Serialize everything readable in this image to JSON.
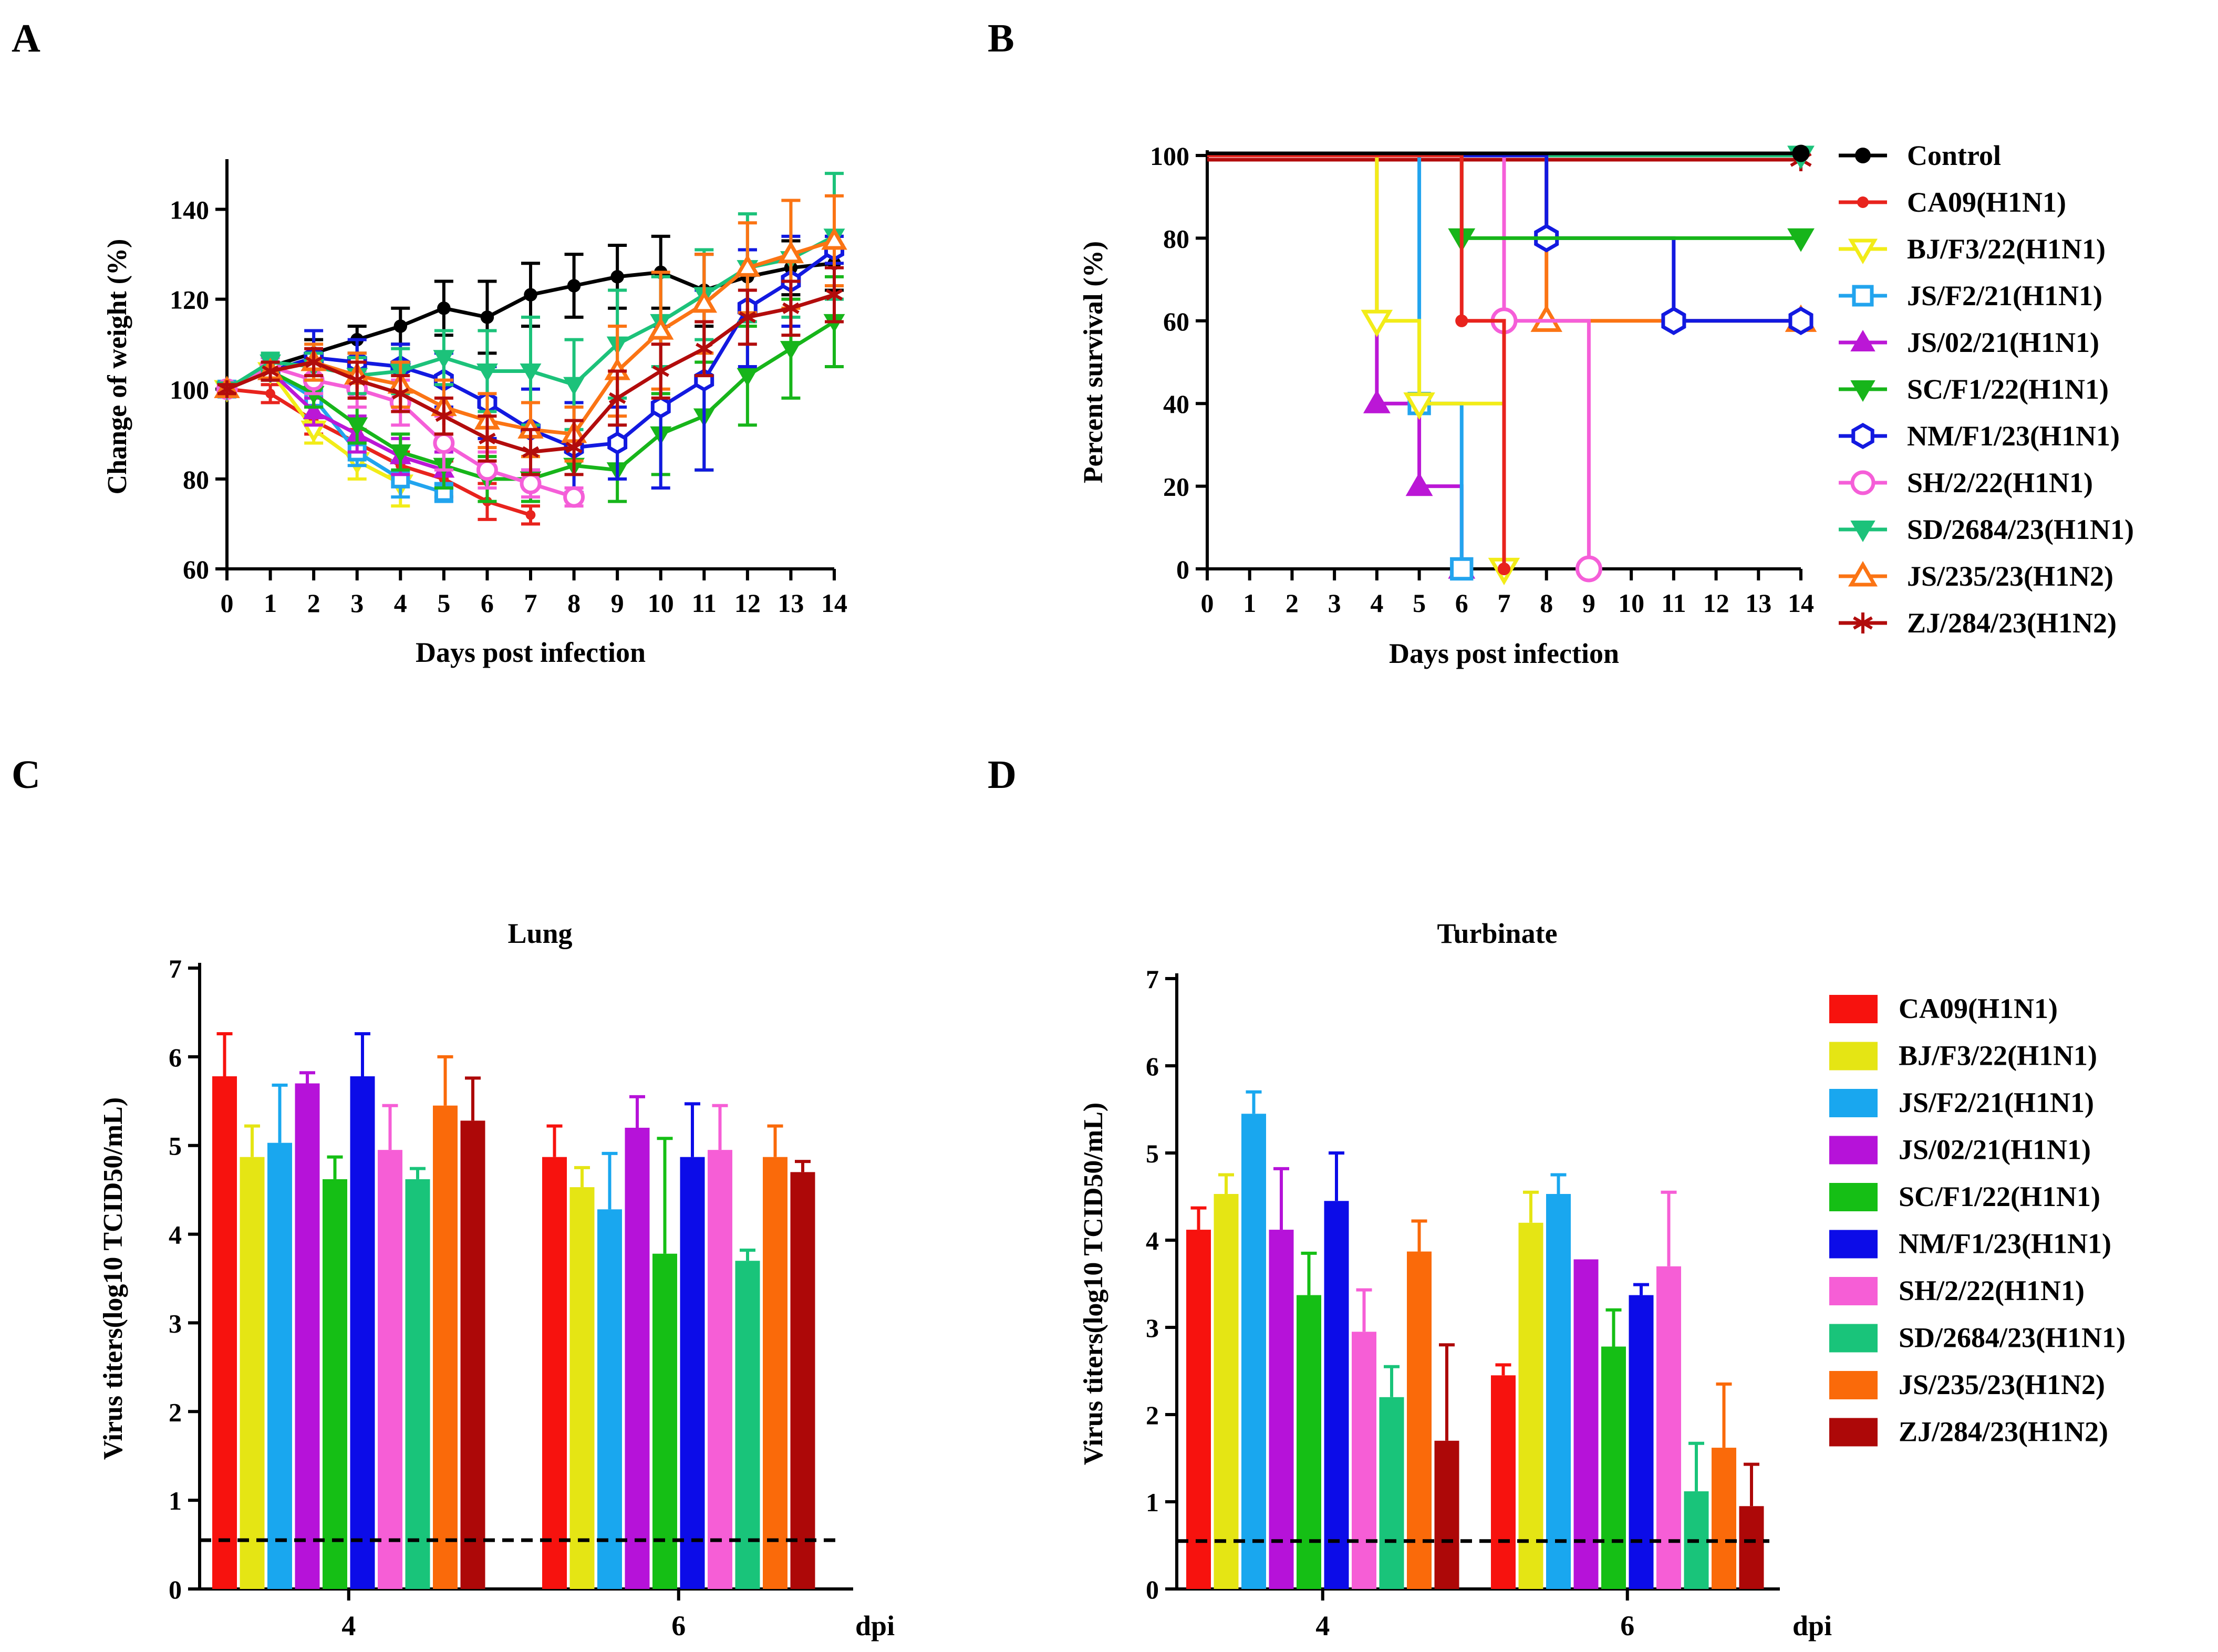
{
  "figure": {
    "panel_labels": [
      "A",
      "B",
      "C",
      "D"
    ],
    "series_names": [
      "Control",
      "CA09(H1N1)",
      "BJ/F3/22(H1N1)",
      "JS/F2/21(H1N1)",
      "JS/02/21(H1N1)",
      "SC/F1/22(H1N1)",
      "NM/F1/23(H1N1)",
      "SH/2/22(H1N1)",
      "SD/2684/23(H1N1)",
      "JS/235/23(H1N2)",
      "ZJ/284/23(H1N2)"
    ],
    "colors": {
      "Control": "#000000",
      "CA09(H1N1)": "#e8231d",
      "BJ/F3/22(H1N1)": "#f2ec18",
      "JS/F2/21(H1N1)": "#22a4ee",
      "JS/02/21(H1N1)": "#bb17d6",
      "SC/F1/22(H1N1)": "#17b51a",
      "NM/F1/23(H1N1)": "#1219e0",
      "SH/2/22(H1N1)": "#f55ed8",
      "SD/2684/23(H1N1)": "#1cc27a",
      "JS/235/23(H1N2)": "#fb7414",
      "ZJ/284/23(H1N2)": "#b20c0c"
    },
    "bar_colors": {
      "CA09(H1N1)": "#f7120e",
      "BJ/F3/22(H1N1)": "#e5e514",
      "JS/F2/21(H1N1)": "#19a7ef",
      "JS/02/21(H1N1)": "#b612d9",
      "SC/F1/22(H1N1)": "#15bf15",
      "NM/F1/23(H1N1)": "#0c0ce8",
      "SH/2/22(H1N1)": "#f65ed6",
      "SD/2684/23(H1N1)": "#19c47a",
      "JS/235/23(H1N2)": "#fa6a0a",
      "ZJ/284/23(H1N2)": "#ad0808"
    },
    "markers": {
      "Control": "circle-filled",
      "CA09(H1N1)": "small-circle-filled",
      "BJ/F3/22(H1N1)": "triangle-down-open",
      "JS/F2/21(H1N1)": "square-open",
      "JS/02/21(H1N1)": "triangle-up-filled",
      "SC/F1/22(H1N1)": "triangle-down-filled",
      "NM/F1/23(H1N1)": "hexagon-open",
      "SH/2/22(H1N1)": "circle-open",
      "SD/2684/23(H1N1)": "triangle-down-filled",
      "JS/235/23(H1N2)": "triangle-up-open",
      "ZJ/284/23(H1N2)": "asterisk"
    }
  },
  "chart_data": [
    {
      "id": "A",
      "type": "line",
      "title": "",
      "xlabel": "Days post infection",
      "ylabel": "Change of weight (%)",
      "xlim": [
        0,
        14
      ],
      "ylim": [
        60,
        150
      ],
      "xticks": [
        0,
        1,
        2,
        3,
        4,
        5,
        6,
        7,
        8,
        9,
        10,
        11,
        12,
        13,
        14
      ],
      "yticks": [
        60,
        80,
        100,
        120,
        140
      ],
      "series": [
        {
          "name": "Control",
          "x": [
            0,
            1,
            2,
            3,
            4,
            5,
            6,
            7,
            8,
            9,
            10,
            11,
            12,
            13,
            14
          ],
          "y": [
            100,
            105,
            108,
            111,
            114,
            118,
            116,
            121,
            123,
            125,
            126,
            122,
            125,
            127,
            128
          ],
          "err": [
            1,
            2,
            3,
            3,
            4,
            6,
            8,
            7,
            7,
            7,
            8,
            8,
            6,
            6,
            6
          ]
        },
        {
          "name": "CA09(H1N1)",
          "x": [
            0,
            1,
            2,
            3,
            4,
            5,
            6,
            7
          ],
          "y": [
            100,
            99,
            93,
            88,
            83,
            80,
            75,
            72
          ],
          "err": [
            1,
            2,
            3,
            3,
            3,
            4,
            4,
            2
          ]
        },
        {
          "name": "BJ/F3/22(H1N1)",
          "x": [
            0,
            1,
            2,
            3,
            4
          ],
          "y": [
            100,
            104,
            91,
            84,
            79
          ],
          "err": [
            1,
            2,
            3,
            4,
            5
          ]
        },
        {
          "name": "JS/F2/21(H1N1)",
          "x": [
            0,
            1,
            2,
            3,
            4,
            5
          ],
          "y": [
            100,
            104,
            98,
            86,
            80,
            77
          ],
          "err": [
            1,
            2,
            4,
            3,
            4,
            2
          ]
        },
        {
          "name": "JS/02/21(H1N1)",
          "x": [
            0,
            1,
            2,
            3,
            4,
            5
          ],
          "y": [
            100,
            104,
            95,
            90,
            85,
            82
          ],
          "err": [
            1,
            2,
            3,
            4,
            4,
            4
          ]
        },
        {
          "name": "SC/F1/22(H1N1)",
          "x": [
            0,
            1,
            2,
            3,
            4,
            5,
            6,
            7,
            8,
            9,
            10,
            11,
            12,
            13,
            14
          ],
          "y": [
            100,
            104,
            99,
            92,
            86,
            83,
            80,
            80,
            83,
            82,
            90,
            94,
            103,
            109,
            115
          ],
          "err": [
            1,
            2,
            3,
            4,
            4,
            5,
            5,
            5,
            6,
            7,
            9,
            12,
            11,
            11,
            10
          ]
        },
        {
          "name": "NM/F1/23(H1N1)",
          "x": [
            0,
            1,
            2,
            3,
            4,
            5,
            6,
            7,
            8,
            9,
            10,
            11,
            12,
            13,
            14
          ],
          "y": [
            100,
            104,
            107,
            106,
            105,
            102,
            97,
            91,
            87,
            88,
            96,
            102,
            118,
            124,
            131
          ],
          "err": [
            1,
            2,
            6,
            5,
            5,
            6,
            8,
            9,
            10,
            8,
            18,
            20,
            13,
            10,
            3
          ]
        },
        {
          "name": "SH/2/22(H1N1)",
          "x": [
            0,
            1,
            2,
            3,
            4,
            5,
            6,
            7,
            8
          ],
          "y": [
            100,
            105,
            102,
            100,
            97,
            88,
            82,
            79,
            76
          ],
          "err": [
            1,
            2,
            3,
            4,
            5,
            6,
            4,
            3,
            2
          ]
        },
        {
          "name": "SD/2684/23(H1N1)",
          "x": [
            0,
            1,
            2,
            3,
            4,
            5,
            6,
            7,
            8,
            9,
            10,
            11,
            12,
            13,
            14
          ],
          "y": [
            100,
            106,
            105,
            103,
            104,
            107,
            104,
            104,
            101,
            110,
            115,
            121,
            127,
            129,
            134
          ],
          "err": [
            1,
            2,
            3,
            4,
            5,
            6,
            9,
            12,
            10,
            12,
            10,
            10,
            12,
            13,
            14
          ]
        },
        {
          "name": "JS/235/23(H1N2)",
          "x": [
            0,
            1,
            2,
            3,
            4,
            5,
            6,
            7,
            8,
            9,
            10,
            11,
            12,
            13,
            14
          ],
          "y": [
            100,
            104,
            106,
            103,
            101,
            96,
            93,
            91,
            90,
            104,
            113,
            119,
            127,
            130,
            133
          ],
          "err": [
            1,
            2,
            4,
            5,
            5,
            6,
            6,
            6,
            6,
            10,
            13,
            11,
            10,
            12,
            10
          ]
        },
        {
          "name": "ZJ/284/23(H1N2)",
          "x": [
            0,
            1,
            2,
            3,
            4,
            5,
            6,
            7,
            8,
            9,
            10,
            11,
            12,
            13,
            14
          ],
          "y": [
            100,
            104,
            106,
            102,
            99,
            94,
            89,
            86,
            87,
            98,
            104,
            109,
            116,
            118,
            121
          ],
          "err": [
            1,
            2,
            3,
            4,
            4,
            4,
            5,
            5,
            6,
            6,
            6,
            6,
            6,
            6,
            6
          ]
        }
      ]
    },
    {
      "id": "B",
      "type": "line",
      "subtype": "survival-step",
      "title": "",
      "xlabel": "Days post infection",
      "ylabel": "Percent survival (%)",
      "xlim": [
        0,
        14
      ],
      "ylim": [
        0,
        100
      ],
      "xticks": [
        0,
        1,
        2,
        3,
        4,
        5,
        6,
        7,
        8,
        9,
        10,
        11,
        12,
        13,
        14
      ],
      "yticks": [
        0,
        20,
        40,
        60,
        80,
        100
      ],
      "legend": "right",
      "series": [
        {
          "name": "Control",
          "x": [
            0,
            14
          ],
          "y": [
            100,
            100
          ]
        },
        {
          "name": "CA09(H1N1)",
          "x": [
            0,
            6,
            6,
            7,
            7
          ],
          "y": [
            100,
            100,
            60,
            60,
            0
          ]
        },
        {
          "name": "BJ/F3/22(H1N1)",
          "x": [
            0,
            4,
            4,
            5,
            5,
            7,
            7
          ],
          "y": [
            100,
            100,
            60,
            60,
            40,
            40,
            0
          ]
        },
        {
          "name": "JS/F2/21(H1N1)",
          "x": [
            0,
            5,
            5,
            6,
            6
          ],
          "y": [
            100,
            100,
            40,
            40,
            0
          ]
        },
        {
          "name": "JS/02/21(H1N1)",
          "x": [
            0,
            4,
            4,
            5,
            5,
            6,
            6
          ],
          "y": [
            100,
            100,
            40,
            40,
            20,
            20,
            0
          ]
        },
        {
          "name": "SC/F1/22(H1N1)",
          "x": [
            0,
            6,
            6,
            14
          ],
          "y": [
            100,
            100,
            80,
            80
          ]
        },
        {
          "name": "NM/F1/23(H1N1)",
          "x": [
            0,
            8,
            8,
            11,
            11,
            14
          ],
          "y": [
            100,
            100,
            80,
            80,
            60,
            60
          ]
        },
        {
          "name": "SH/2/22(H1N1)",
          "x": [
            0,
            7,
            7,
            9,
            9
          ],
          "y": [
            100,
            100,
            60,
            60,
            0
          ]
        },
        {
          "name": "SD/2684/23(H1N1)",
          "x": [
            0,
            14
          ],
          "y": [
            100,
            100
          ]
        },
        {
          "name": "JS/235/23(H1N2)",
          "x": [
            0,
            8,
            8,
            14
          ],
          "y": [
            100,
            100,
            60,
            60
          ]
        },
        {
          "name": "ZJ/284/23(H1N2)",
          "x": [
            0,
            14
          ],
          "y": [
            100,
            100
          ]
        }
      ]
    },
    {
      "id": "C",
      "type": "bar",
      "title": "Lung",
      "xlabel": "dpi",
      "ylabel": "Virus titers(log10 TCID50/mL)",
      "ylim": [
        0,
        7
      ],
      "yticks": [
        0,
        1,
        2,
        3,
        4,
        5,
        6,
        7
      ],
      "categories": [
        "4",
        "6"
      ],
      "detection_limit": 0.55,
      "series": [
        {
          "name": "CA09(H1N1)",
          "values": [
            5.78,
            4.87
          ],
          "err": [
            0.48,
            0.35
          ]
        },
        {
          "name": "BJ/F3/22(H1N1)",
          "values": [
            4.87,
            4.53
          ],
          "err": [
            0.35,
            0.22
          ]
        },
        {
          "name": "JS/F2/21(H1N1)",
          "values": [
            5.03,
            4.28
          ],
          "err": [
            0.65,
            0.63
          ]
        },
        {
          "name": "JS/02/21(H1N1)",
          "values": [
            5.7,
            5.2
          ],
          "err": [
            0.12,
            0.35
          ]
        },
        {
          "name": "SC/F1/22(H1N1)",
          "values": [
            4.62,
            3.78
          ],
          "err": [
            0.25,
            1.3
          ]
        },
        {
          "name": "NM/F1/23(H1N1)",
          "values": [
            5.78,
            4.87
          ],
          "err": [
            0.48,
            0.6
          ]
        },
        {
          "name": "SH/2/22(H1N1)",
          "values": [
            4.95,
            4.95
          ],
          "err": [
            0.5,
            0.5
          ]
        },
        {
          "name": "SD/2684/23(H1N1)",
          "values": [
            4.62,
            3.7
          ],
          "err": [
            0.12,
            0.12
          ]
        },
        {
          "name": "JS/235/23(H1N2)",
          "values": [
            5.45,
            4.87
          ],
          "err": [
            0.55,
            0.35
          ]
        },
        {
          "name": "ZJ/284/23(H1N2)",
          "values": [
            5.28,
            4.7
          ],
          "err": [
            0.48,
            0.12
          ]
        }
      ]
    },
    {
      "id": "D",
      "type": "bar",
      "title": "Turbinate",
      "xlabel": "dpi",
      "ylabel": "Virus titers(log10 TCID50/mL)",
      "ylim": [
        0,
        7
      ],
      "yticks": [
        0,
        1,
        2,
        3,
        4,
        5,
        6,
        7
      ],
      "categories": [
        "4",
        "6"
      ],
      "detection_limit": 0.55,
      "legend": "right",
      "series": [
        {
          "name": "CA09(H1N1)",
          "values": [
            4.12,
            2.45
          ],
          "err": [
            0.25,
            0.12
          ]
        },
        {
          "name": "BJ/F3/22(H1N1)",
          "values": [
            4.53,
            4.2
          ],
          "err": [
            0.22,
            0.35
          ]
        },
        {
          "name": "JS/F2/21(H1N1)",
          "values": [
            5.45,
            4.53
          ],
          "err": [
            0.25,
            0.22
          ]
        },
        {
          "name": "JS/02/21(H1N1)",
          "values": [
            4.12,
            3.78
          ],
          "err": [
            0.7,
            0.0
          ]
        },
        {
          "name": "SC/F1/22(H1N1)",
          "values": [
            3.37,
            2.78
          ],
          "err": [
            0.48,
            0.42
          ]
        },
        {
          "name": "NM/F1/23(H1N1)",
          "values": [
            4.45,
            3.37
          ],
          "err": [
            0.55,
            0.12
          ]
        },
        {
          "name": "SH/2/22(H1N1)",
          "values": [
            2.95,
            3.7
          ],
          "err": [
            0.48,
            0.85
          ]
        },
        {
          "name": "SD/2684/23(H1N1)",
          "values": [
            2.2,
            1.12
          ],
          "err": [
            0.35,
            0.55
          ]
        },
        {
          "name": "JS/235/23(H1N2)",
          "values": [
            3.87,
            1.62
          ],
          "err": [
            0.35,
            0.73
          ]
        },
        {
          "name": "ZJ/284/23(H1N2)",
          "values": [
            1.7,
            0.95
          ],
          "err": [
            1.1,
            0.48
          ]
        }
      ]
    }
  ]
}
